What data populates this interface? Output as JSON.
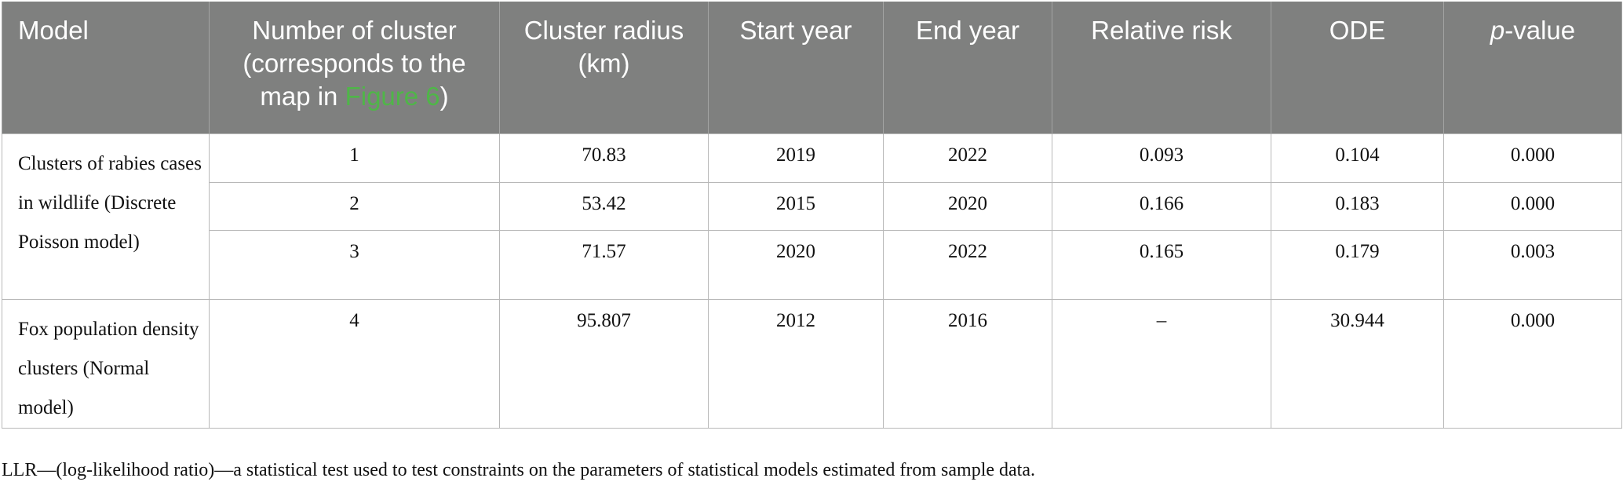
{
  "headers": {
    "model": "Model",
    "number_prefix": "Number of cluster (corresponds to the map in ",
    "number_link": "Figure 6",
    "number_suffix": ")",
    "radius": "Cluster radius (km)",
    "start": "Start year",
    "end": "End year",
    "rr": "Relative risk",
    "ode": "ODE",
    "p_italic": "p",
    "p_rest": "-value"
  },
  "groups": [
    {
      "model": "Clusters of rabies cases in wildlife (Discrete Poisson model)"
    },
    {
      "model": "Fox population density clusters (Normal model)"
    }
  ],
  "rows": [
    {
      "number": "1",
      "radius": "70.83",
      "start": "2019",
      "end": "2022",
      "rr": "0.093",
      "ode": "0.104",
      "p": "0.000"
    },
    {
      "number": "2",
      "radius": "53.42",
      "start": "2015",
      "end": "2020",
      "rr": "0.166",
      "ode": "0.183",
      "p": "0.000"
    },
    {
      "number": "3",
      "radius": "71.57",
      "start": "2020",
      "end": "2022",
      "rr": "0.165",
      "ode": "0.179",
      "p": "0.003"
    },
    {
      "number": "4",
      "radius": "95.807",
      "start": "2012",
      "end": "2016",
      "rr": "–",
      "ode": "30.944",
      "p": "0.000"
    }
  ],
  "footnote": "LLR—(log-likelihood ratio)—a statistical test used to test constraints on the parameters of statistical models estimated from sample data.",
  "colors": {
    "header_bg": "#7f807f",
    "header_text": "#ffffff",
    "link": "#4fb648",
    "border": "#b8b8b8"
  }
}
